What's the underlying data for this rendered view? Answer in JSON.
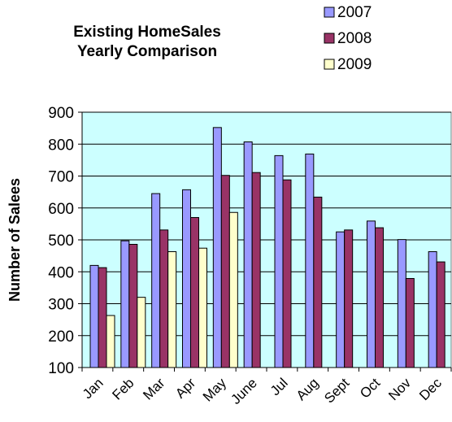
{
  "chart_data": {
    "type": "bar",
    "title": [
      "Existing HomeSales",
      "Yearly Comparison"
    ],
    "xlabel": "",
    "ylabel": "Number of Salees",
    "ylim": [
      100,
      900
    ],
    "yticks": [
      100,
      200,
      300,
      400,
      500,
      600,
      700,
      800,
      900
    ],
    "grid": true,
    "legend_position": "top-right",
    "categories": [
      "Jan",
      "Feb",
      "Mar",
      "Apr",
      "May",
      "June",
      "Jul",
      "Aug",
      "Sept",
      "Oct",
      "Nov",
      "Dec"
    ],
    "series": [
      {
        "name": "2007",
        "color": "#9999ff",
        "values": [
          420,
          497,
          645,
          657,
          852,
          807,
          764,
          769,
          525,
          559,
          501,
          463
        ]
      },
      {
        "name": "2008",
        "color": "#993366",
        "values": [
          413,
          486,
          531,
          570,
          702,
          711,
          688,
          634,
          531,
          538,
          379,
          431
        ]
      },
      {
        "name": "2009",
        "color": "#ffffcc",
        "values": [
          263,
          320,
          463,
          474,
          586,
          null,
          null,
          null,
          null,
          null,
          null,
          null
        ]
      }
    ],
    "plot_background": "#ccffff"
  }
}
